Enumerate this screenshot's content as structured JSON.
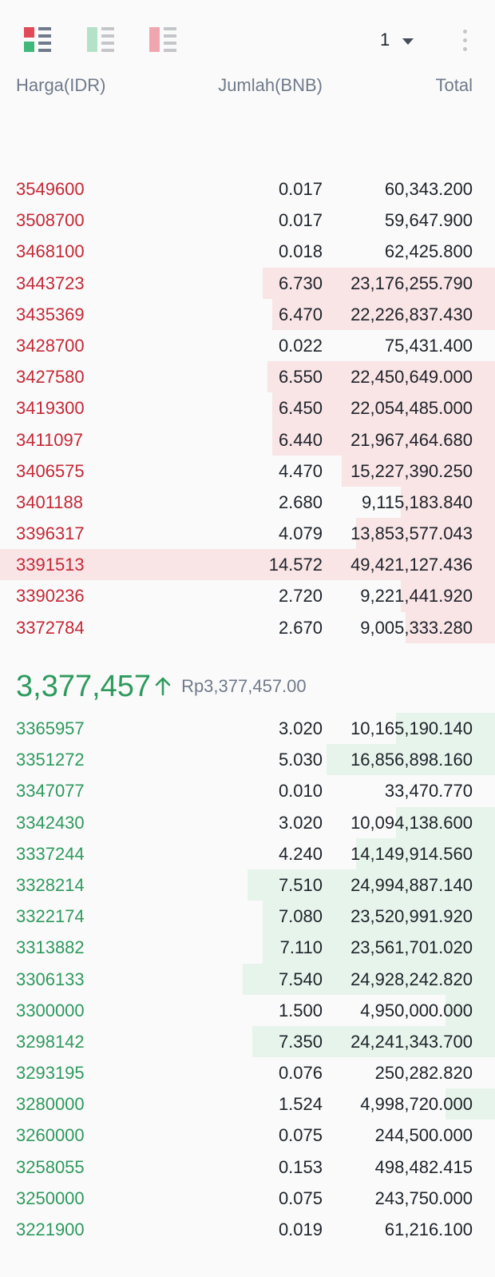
{
  "toolbar": {
    "depth": "1",
    "icons": [
      "orderbook-both-icon",
      "orderbook-bids-icon",
      "orderbook-asks-icon",
      "more-vertical-icon"
    ]
  },
  "headers": {
    "price": "Harga(IDR)",
    "amount": "Jumlah(BNB)",
    "total": "Total"
  },
  "colors": {
    "ask": "#c52836",
    "bid": "#2f9a5e",
    "ask_fill": "#f9e4e6",
    "bid_fill": "#e7f4ec"
  },
  "asks": [
    {
      "price": "3549600",
      "amount": "0.017",
      "total": "60,343.200",
      "depth": 0
    },
    {
      "price": "3508700",
      "amount": "0.017",
      "total": "59,647.900",
      "depth": 0
    },
    {
      "price": "3468100",
      "amount": "0.018",
      "total": "62,425.800",
      "depth": 0
    },
    {
      "price": "3443723",
      "amount": "6.730",
      "total": "23,176,255.790",
      "depth": 0.47
    },
    {
      "price": "3435369",
      "amount": "6.470",
      "total": "22,226,837.430",
      "depth": 0.45
    },
    {
      "price": "3428700",
      "amount": "0.022",
      "total": "75,431.400",
      "depth": 0
    },
    {
      "price": "3427580",
      "amount": "6.550",
      "total": "22,450,649.000",
      "depth": 0.46
    },
    {
      "price": "3419300",
      "amount": "6.450",
      "total": "22,054,485.000",
      "depth": 0.45
    },
    {
      "price": "3411097",
      "amount": "6.440",
      "total": "21,967,464.680",
      "depth": 0.45
    },
    {
      "price": "3406575",
      "amount": "4.470",
      "total": "15,227,390.250",
      "depth": 0.31
    },
    {
      "price": "3401188",
      "amount": "2.680",
      "total": "9,115,183.840",
      "depth": 0.19
    },
    {
      "price": "3396317",
      "amount": "4.079",
      "total": "13,853,577.043",
      "depth": 0.28
    },
    {
      "price": "3391513",
      "amount": "14.572",
      "total": "49,421,127.436",
      "depth": 1.0
    },
    {
      "price": "3390236",
      "amount": "2.720",
      "total": "9,221,441.920",
      "depth": 0.19
    },
    {
      "price": "3372784",
      "amount": "2.670",
      "total": "9,005,333.280",
      "depth": 0.18
    }
  ],
  "mid": {
    "last_price": "3,377,457",
    "fiat": "Rp3,377,457.00"
  },
  "bids": [
    {
      "price": "3365957",
      "amount": "3.020",
      "total": "10,165,190.140",
      "depth": 0.2
    },
    {
      "price": "3351272",
      "amount": "5.030",
      "total": "16,856,898.160",
      "depth": 0.34
    },
    {
      "price": "3347077",
      "amount": "0.010",
      "total": "33,470.770",
      "depth": 0
    },
    {
      "price": "3342430",
      "amount": "3.020",
      "total": "10,094,138.600",
      "depth": 0.2
    },
    {
      "price": "3337244",
      "amount": "4.240",
      "total": "14,149,914.560",
      "depth": 0.28
    },
    {
      "price": "3328214",
      "amount": "7.510",
      "total": "24,994,887.140",
      "depth": 0.5
    },
    {
      "price": "3322174",
      "amount": "7.080",
      "total": "23,520,991.920",
      "depth": 0.47
    },
    {
      "price": "3313882",
      "amount": "7.110",
      "total": "23,561,701.020",
      "depth": 0.47
    },
    {
      "price": "3306133",
      "amount": "7.540",
      "total": "24,928,242.820",
      "depth": 0.51
    },
    {
      "price": "3300000",
      "amount": "1.500",
      "total": "4,950,000.000",
      "depth": 0.1
    },
    {
      "price": "3298142",
      "amount": "7.350",
      "total": "24,241,343.700",
      "depth": 0.49
    },
    {
      "price": "3293195",
      "amount": "0.076",
      "total": "250,282.820",
      "depth": 0
    },
    {
      "price": "3280000",
      "amount": "1.524",
      "total": "4,998,720.000",
      "depth": 0.1
    },
    {
      "price": "3260000",
      "amount": "0.075",
      "total": "244,500.000",
      "depth": 0
    },
    {
      "price": "3258055",
      "amount": "0.153",
      "total": "498,482.415",
      "depth": 0
    },
    {
      "price": "3250000",
      "amount": "0.075",
      "total": "243,750.000",
      "depth": 0
    },
    {
      "price": "3221900",
      "amount": "0.019",
      "total": "61,216.100",
      "depth": 0
    }
  ]
}
